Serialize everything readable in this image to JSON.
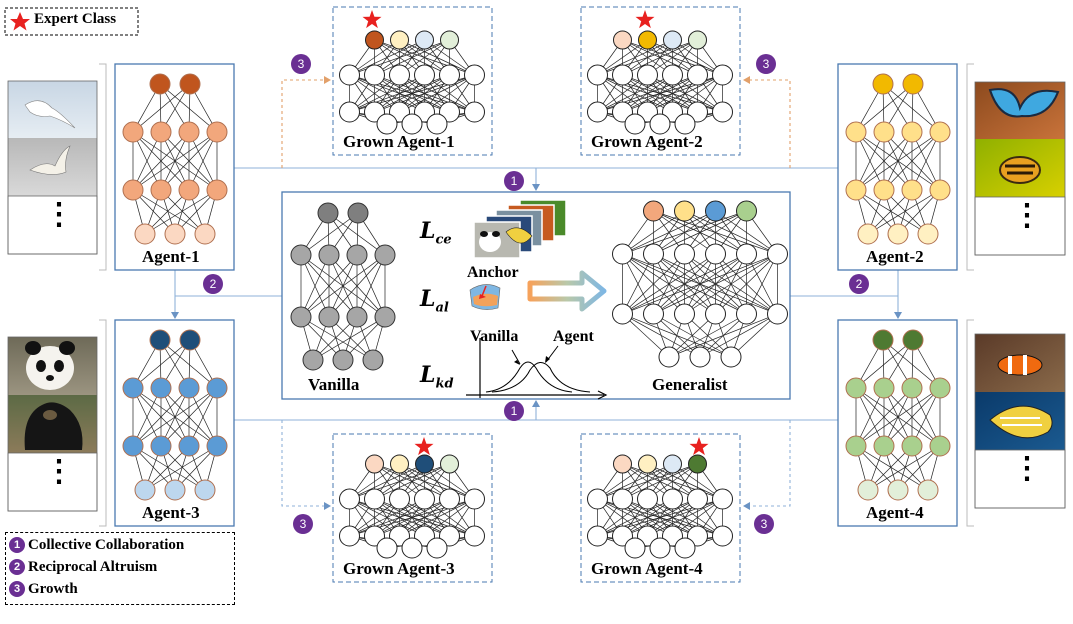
{
  "legend_top": {
    "star_label": "Expert Class"
  },
  "legend_bottom": {
    "items": [
      {
        "num": "1",
        "label": "Collective Collaboration"
      },
      {
        "num": "2",
        "label": "Reciprocal Altruism"
      },
      {
        "num": "3",
        "label": "Growth"
      }
    ]
  },
  "agents": {
    "a1": {
      "label": "Agent-1"
    },
    "a2": {
      "label": "Agent-2"
    },
    "a3": {
      "label": "Agent-3"
    },
    "a4": {
      "label": "Agent-4"
    }
  },
  "grown": {
    "g1": {
      "label": "Grown Agent-1"
    },
    "g2": {
      "label": "Grown Agent-2"
    },
    "g3": {
      "label": "Grown Agent-3"
    },
    "g4": {
      "label": "Grown Agent-4"
    }
  },
  "center": {
    "vanilla_label": "Vanilla",
    "generalist_label": "Generalist",
    "anchor_label": "Anchor",
    "loss_ce": {
      "symbol": "L",
      "sub": "ce"
    },
    "loss_al": {
      "symbol": "L",
      "sub": "al"
    },
    "loss_kd": {
      "symbol": "L",
      "sub": "kd"
    },
    "kd_vanilla_label": "Vanilla",
    "kd_agent_label": "Agent"
  },
  "badges": {
    "one": "1",
    "two": "2",
    "three": "3"
  },
  "dots": "⋮",
  "colors": {
    "agent1": {
      "top": "#c0551e",
      "mid": "#f2a77c",
      "bot": "#fbd8c2"
    },
    "agent2": {
      "top": "#f2b900",
      "mid": "#ffe08a",
      "bot": "#fff0c2"
    },
    "agent3": {
      "top": "#1f4e79",
      "mid": "#5b9bd5",
      "bot": "#bdd7ee"
    },
    "agent4": {
      "top": "#4e7a32",
      "mid": "#a9d08e",
      "bot": "#e2efd9"
    },
    "vanilla": {
      "top": "#7f7f7f",
      "mid": "#a6a6a6",
      "bot": "#a6a6a6"
    },
    "frame": "#4a7ab0",
    "purple": "#6a2f93",
    "star": "#e8211f"
  }
}
